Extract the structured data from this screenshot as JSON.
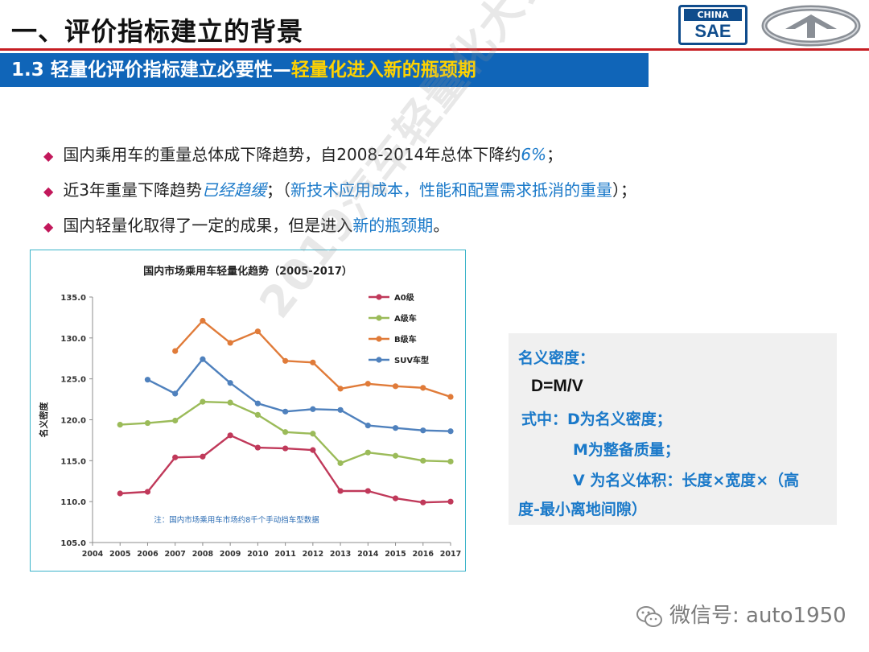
{
  "header": {
    "title": "一、评价指标建立的背景",
    "logo_top": "CHINA",
    "logo_bottom": "SAE"
  },
  "banner": {
    "number": "1.3",
    "text_a": "轻量化评价指标建立必要性—",
    "text_b": "轻量化进入新的瓶颈期"
  },
  "bullets": [
    {
      "a": "国内乘用车的重量总体成下降趋势，自2008-2014年总体下降约",
      "em": "6%",
      "b": "；"
    },
    {
      "a": "近3年重量下降趋势",
      "em": "已经趋缓",
      "b": "；（",
      "hl": "新技术应用成本，性能和配置需求抵消的重量",
      "c": "）；"
    },
    {
      "a": "国内轻量化取得了一定的成果，但是进入",
      "hl": "新的瓶颈期",
      "b": "。"
    }
  ],
  "formula": {
    "title": "名义密度：",
    "equation": "D=M/V",
    "line1": "式中：D为名义密度；",
    "line2": "M为整备质量；",
    "line3": "V 为名义体积：长度×宽度×（高",
    "line4": "度-最小离地间隙）"
  },
  "watermark": "2019汽车轻量化大会暨展览会",
  "wechat": {
    "text": "微信号: auto1950",
    "icon": "wechat-icon"
  },
  "chart_data": {
    "type": "line",
    "title": "国内市场乘用车轻量化趋势（2005-2017）",
    "ylabel": "名义密度",
    "xlabel": "",
    "ylim": [
      105.0,
      135.0
    ],
    "ytick_step": 5,
    "categories": [
      "2004",
      "2005",
      "2006",
      "2007",
      "2008",
      "2009",
      "2010",
      "2011",
      "2012",
      "2013",
      "2014",
      "2015",
      "2016",
      "2017"
    ],
    "legend_position": "top-right",
    "grid": false,
    "note": "注：国内市场乘用车市场约8千个手动挡车型数据",
    "series": [
      {
        "name": "A0级",
        "color": "#c0395a",
        "values": [
          null,
          111.0,
          111.2,
          115.4,
          115.5,
          118.1,
          116.6,
          116.5,
          116.3,
          111.3,
          111.3,
          110.4,
          109.9,
          110.0
        ]
      },
      {
        "name": "A级车",
        "color": "#9bbb59",
        "values": [
          null,
          119.4,
          119.6,
          119.9,
          122.2,
          122.1,
          120.6,
          118.5,
          118.3,
          114.7,
          116.0,
          115.6,
          115.0,
          114.9
        ]
      },
      {
        "name": "B级车",
        "color": "#e07b39",
        "values": [
          null,
          null,
          null,
          128.4,
          132.1,
          129.4,
          130.8,
          127.2,
          127.0,
          123.8,
          124.4,
          124.1,
          123.9,
          122.8
        ]
      },
      {
        "name": "SUV车型",
        "color": "#4f81bd",
        "values": [
          null,
          null,
          124.9,
          123.2,
          127.4,
          124.5,
          122.0,
          121.0,
          121.3,
          121.2,
          119.3,
          119.0,
          118.7,
          118.6
        ]
      }
    ]
  }
}
